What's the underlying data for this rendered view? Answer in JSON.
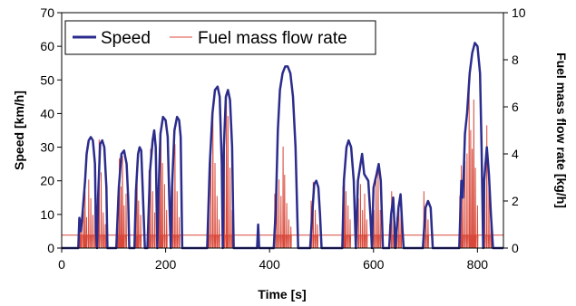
{
  "chart_data": {
    "type": "line",
    "title": "",
    "xlabel": "Time [s]",
    "ylabel": "Speed [km/h]",
    "y2label": "Fuel mass flow rate [kg/h]",
    "xlim": [
      0,
      850
    ],
    "ylim": [
      0,
      70
    ],
    "y2lim": [
      0,
      10
    ],
    "x_ticks": [
      0,
      200,
      400,
      600,
      800
    ],
    "y_ticks": [
      0,
      10,
      20,
      30,
      40,
      50,
      60,
      70
    ],
    "y2_ticks": [
      0,
      2,
      4,
      6,
      8,
      10
    ],
    "grid": false,
    "legend_position": "top-left",
    "series": [
      {
        "name": "Speed",
        "axis": "left",
        "color": "#2b2c8c",
        "points": [
          [
            0,
            0
          ],
          [
            32,
            0
          ],
          [
            34,
            9
          ],
          [
            37,
            5
          ],
          [
            40,
            10
          ],
          [
            45,
            20
          ],
          [
            48,
            28
          ],
          [
            52,
            32
          ],
          [
            56,
            33
          ],
          [
            60,
            32
          ],
          [
            64,
            25
          ],
          [
            66,
            5
          ],
          [
            68,
            0
          ],
          [
            70,
            15
          ],
          [
            74,
            31
          ],
          [
            78,
            32
          ],
          [
            82,
            30
          ],
          [
            86,
            18
          ],
          [
            88,
            0
          ],
          [
            105,
            0
          ],
          [
            110,
            18
          ],
          [
            115,
            28
          ],
          [
            120,
            29
          ],
          [
            125,
            25
          ],
          [
            128,
            15
          ],
          [
            130,
            0
          ],
          [
            140,
            0
          ],
          [
            143,
            17
          ],
          [
            147,
            28
          ],
          [
            150,
            30
          ],
          [
            153,
            29
          ],
          [
            156,
            17
          ],
          [
            160,
            0
          ],
          [
            165,
            0
          ],
          [
            170,
            23
          ],
          [
            175,
            32
          ],
          [
            178,
            35
          ],
          [
            181,
            30
          ],
          [
            184,
            0
          ],
          [
            186,
            15
          ],
          [
            190,
            34
          ],
          [
            195,
            39
          ],
          [
            200,
            38
          ],
          [
            204,
            33
          ],
          [
            207,
            15
          ],
          [
            210,
            0
          ],
          [
            212,
            17
          ],
          [
            217,
            35
          ],
          [
            222,
            39
          ],
          [
            226,
            38
          ],
          [
            229,
            33
          ],
          [
            232,
            0
          ],
          [
            280,
            0
          ],
          [
            285,
            25
          ],
          [
            290,
            40
          ],
          [
            295,
            47
          ],
          [
            300,
            48
          ],
          [
            304,
            45
          ],
          [
            308,
            25
          ],
          [
            310,
            0
          ],
          [
            312,
            30
          ],
          [
            316,
            45
          ],
          [
            320,
            47
          ],
          [
            324,
            44
          ],
          [
            328,
            30
          ],
          [
            331,
            0
          ],
          [
            376,
            0
          ],
          [
            378,
            7
          ],
          [
            380,
            0
          ],
          [
            408,
            0
          ],
          [
            412,
            12
          ],
          [
            416,
            35
          ],
          [
            420,
            47
          ],
          [
            425,
            52
          ],
          [
            430,
            54
          ],
          [
            435,
            54
          ],
          [
            440,
            52
          ],
          [
            445,
            45
          ],
          [
            450,
            30
          ],
          [
            455,
            0
          ],
          [
            478,
            0
          ],
          [
            482,
            10
          ],
          [
            486,
            19
          ],
          [
            490,
            20
          ],
          [
            494,
            18
          ],
          [
            497,
            10
          ],
          [
            500,
            0
          ],
          [
            540,
            0
          ],
          [
            543,
            20
          ],
          [
            548,
            30
          ],
          [
            552,
            32
          ],
          [
            557,
            30
          ],
          [
            562,
            20
          ],
          [
            566,
            0
          ],
          [
            570,
            20
          ],
          [
            578,
            28
          ],
          [
            582,
            22
          ],
          [
            590,
            20
          ],
          [
            594,
            10
          ],
          [
            597,
            0
          ],
          [
            600,
            18
          ],
          [
            606,
            22
          ],
          [
            610,
            25
          ],
          [
            614,
            20
          ],
          [
            618,
            0
          ],
          [
            630,
            0
          ],
          [
            634,
            10
          ],
          [
            638,
            15
          ],
          [
            640,
            8
          ],
          [
            642,
            0
          ],
          [
            648,
            12
          ],
          [
            652,
            16
          ],
          [
            656,
            5
          ],
          [
            658,
            0
          ],
          [
            695,
            0
          ],
          [
            700,
            12
          ],
          [
            705,
            14
          ],
          [
            710,
            12
          ],
          [
            714,
            0
          ],
          [
            765,
            0
          ],
          [
            769,
            20
          ],
          [
            772,
            15
          ],
          [
            776,
            34
          ],
          [
            780,
            40
          ],
          [
            785,
            52
          ],
          [
            790,
            58
          ],
          [
            795,
            61
          ],
          [
            800,
            60
          ],
          [
            805,
            52
          ],
          [
            808,
            30
          ],
          [
            811,
            0
          ],
          [
            813,
            20
          ],
          [
            818,
            30
          ],
          [
            822,
            22
          ],
          [
            826,
            10
          ],
          [
            830,
            0
          ],
          [
            850,
            0
          ]
        ]
      },
      {
        "name": "Fuel mass flow rate",
        "axis": "right",
        "color": "#d8483a",
        "baseline": 0.55,
        "spikes": [
          [
            35,
            1.2
          ],
          [
            38,
            0.9
          ],
          [
            42,
            1.6
          ],
          [
            45,
            2.4
          ],
          [
            48,
            1.3
          ],
          [
            52,
            2.9
          ],
          [
            56,
            2.1
          ],
          [
            60,
            1.4
          ],
          [
            64,
            1.8
          ],
          [
            72,
            4.6
          ],
          [
            76,
            3.2
          ],
          [
            80,
            1.5
          ],
          [
            84,
            1.0
          ],
          [
            108,
            2.2
          ],
          [
            111,
            3.8
          ],
          [
            114,
            2.6
          ],
          [
            117,
            3.9
          ],
          [
            120,
            1.8
          ],
          [
            124,
            2.3
          ],
          [
            142,
            2.5
          ],
          [
            145,
            3.6
          ],
          [
            148,
            2.0
          ],
          [
            152,
            1.4
          ],
          [
            168,
            3.3
          ],
          [
            171,
            4.2
          ],
          [
            175,
            2.4
          ],
          [
            179,
            1.5
          ],
          [
            188,
            4.2
          ],
          [
            191,
            5.0
          ],
          [
            194,
            3.6
          ],
          [
            198,
            2.7
          ],
          [
            202,
            1.6
          ],
          [
            214,
            3.1
          ],
          [
            218,
            4.4
          ],
          [
            222,
            2.4
          ],
          [
            226,
            1.3
          ],
          [
            283,
            2.4
          ],
          [
            287,
            4.6
          ],
          [
            291,
            5.8
          ],
          [
            295,
            3.6
          ],
          [
            299,
            2.2
          ],
          [
            303,
            1.2
          ],
          [
            313,
            4.9
          ],
          [
            317,
            6.6
          ],
          [
            320,
            5.6
          ],
          [
            324,
            3.4
          ],
          [
            328,
            1.6
          ],
          [
            377,
            1.0
          ],
          [
            410,
            2.3
          ],
          [
            414,
            3.9
          ],
          [
            418,
            2.9
          ],
          [
            422,
            2.2
          ],
          [
            426,
            4.3
          ],
          [
            429,
            3.1
          ],
          [
            433,
            1.9
          ],
          [
            437,
            1.2
          ],
          [
            441,
            0.9
          ],
          [
            480,
            2.0
          ],
          [
            484,
            2.8
          ],
          [
            488,
            1.6
          ],
          [
            492,
            1.0
          ],
          [
            541,
            2.6
          ],
          [
            544,
            3.4
          ],
          [
            547,
            2.4
          ],
          [
            551,
            1.8
          ],
          [
            555,
            1.2
          ],
          [
            571,
            2.1
          ],
          [
            575,
            2.7
          ],
          [
            579,
            1.6
          ],
          [
            583,
            2.3
          ],
          [
            587,
            1.2
          ],
          [
            601,
            1.6
          ],
          [
            605,
            2.9
          ],
          [
            609,
            3.3
          ],
          [
            613,
            1.6
          ],
          [
            631,
            1.0
          ],
          [
            635,
            2.4
          ],
          [
            639,
            1.6
          ],
          [
            645,
            1.3
          ],
          [
            649,
            1.7
          ],
          [
            653,
            2.2
          ],
          [
            697,
            2.4
          ],
          [
            701,
            1.8
          ],
          [
            705,
            1.2
          ],
          [
            766,
            2.2
          ],
          [
            769,
            3.5
          ],
          [
            772,
            2.9
          ],
          [
            776,
            3.7
          ],
          [
            780,
            4.0
          ],
          [
            784,
            6.9
          ],
          [
            787,
            5.0
          ],
          [
            790,
            4.2
          ],
          [
            793,
            6.3
          ],
          [
            796,
            3.4
          ],
          [
            800,
            1.8
          ],
          [
            814,
            3.6
          ],
          [
            818,
            5.2
          ],
          [
            822,
            3.4
          ],
          [
            826,
            1.6
          ]
        ]
      }
    ]
  }
}
